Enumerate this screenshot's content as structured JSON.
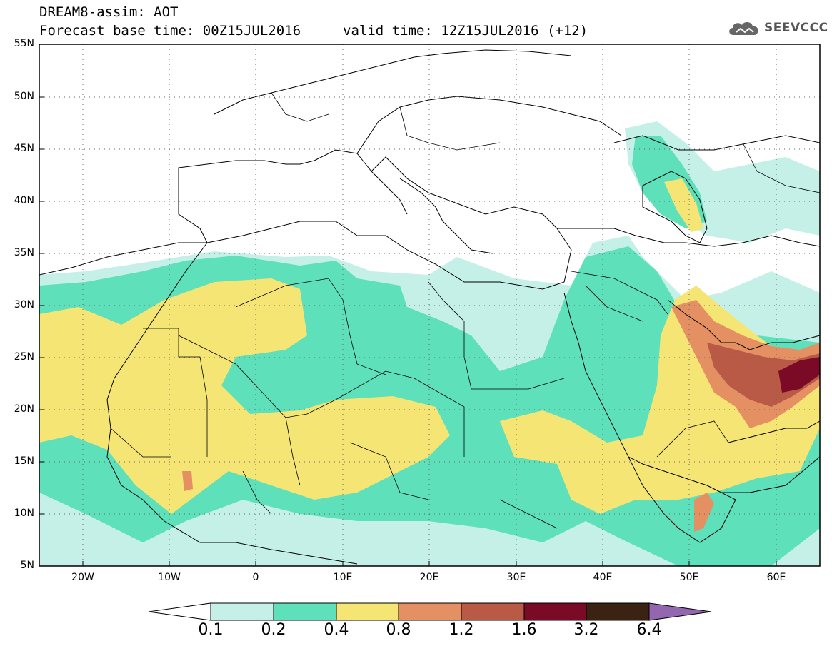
{
  "header": {
    "title_line1": "DREAM8-assim: AOT",
    "title_line2": "Forecast base time: 00Z15JUL2016",
    "valid_time": "valid time: 12Z15JUL2016 (+12)",
    "logo_text": "SEEVCCC",
    "logo_icon": "cloud-icon"
  },
  "map": {
    "lat_labels": [
      "55N",
      "50N",
      "45N",
      "40N",
      "35N",
      "30N",
      "25N",
      "20N",
      "15N",
      "10N",
      "5N"
    ],
    "lon_labels": [
      "20W",
      "10W",
      "0",
      "10E",
      "20E",
      "30E",
      "40E",
      "50E",
      "60E"
    ],
    "lon_range": [
      -25,
      65
    ],
    "lat_range": [
      5,
      55
    ],
    "gridlines": "dotted"
  },
  "colorbar": {
    "labels": [
      "0.1",
      "0.2",
      "0.4",
      "0.8",
      "1.2",
      "1.6",
      "3.2",
      "6.4"
    ],
    "colors": [
      "#ffffff",
      "#c4f0e8",
      "#5ee0bb",
      "#f5e574",
      "#e59062",
      "#b85a46",
      "#7a0a25",
      "#3a2312",
      "#9366b0"
    ],
    "thresholds": [
      0.1,
      0.2,
      0.4,
      0.8,
      1.2,
      1.6,
      3.2,
      6.4
    ]
  }
}
